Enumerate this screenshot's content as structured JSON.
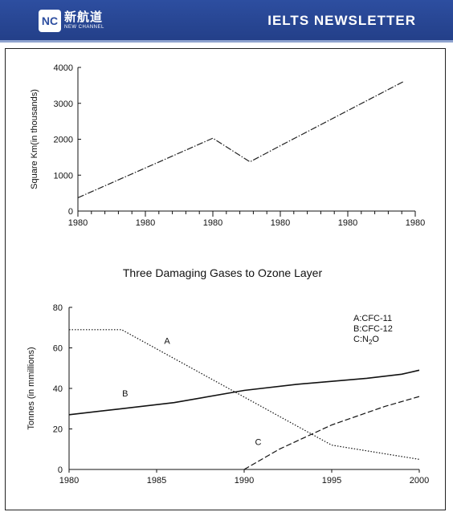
{
  "header": {
    "logo_mark": "NC",
    "logo_cn": "新航道",
    "logo_en": "NEW CHANNEL",
    "title": "IELTS  NEWSLETTER"
  },
  "chart_data": [
    {
      "type": "line",
      "title": "",
      "xlabel": "",
      "ylabel": "Square Km(in thousands)",
      "xticks": [
        "1980",
        "1980",
        "1980",
        "1980",
        "1980",
        "1980"
      ],
      "yticks": [
        "0",
        "1000",
        "2000",
        "3000",
        "4000"
      ],
      "ylim": [
        0,
        4000
      ],
      "x_index_range": [
        0,
        5
      ],
      "grid": false,
      "series": [
        {
          "style": "dash-dot",
          "points": [
            [
              0,
              370
            ],
            [
              2,
              2030
            ],
            [
              2.55,
              1370
            ],
            [
              3,
              1820
            ],
            [
              4.82,
              3600
            ]
          ]
        }
      ]
    },
    {
      "type": "line",
      "title": "Three Damaging Gases to Ozone Layer",
      "xlabel": "",
      "ylabel": "Tonnes (in mmillions)",
      "xlim": [
        1980,
        2000
      ],
      "ylim": [
        0,
        80
      ],
      "xticks": [
        "1980",
        "1985",
        "1990",
        "1995",
        "2000"
      ],
      "yticks": [
        "0",
        "20",
        "40",
        "60",
        "80"
      ],
      "grid": false,
      "legend": [
        "A:CFC-11",
        "B:CFC-12",
        "C:N2O"
      ],
      "series": [
        {
          "name": "A",
          "style": "dotted",
          "points": [
            [
              1980,
              69
            ],
            [
              1983,
              69
            ],
            [
              1995,
              12
            ],
            [
              2000,
              5
            ]
          ],
          "label_at": [
            1985.6,
            62
          ]
        },
        {
          "name": "B",
          "style": "solid",
          "points": [
            [
              1980,
              27
            ],
            [
              1983,
              30
            ],
            [
              1986,
              33
            ],
            [
              1990,
              39
            ],
            [
              1993,
              42
            ],
            [
              1997,
              45
            ],
            [
              1999,
              47
            ],
            [
              2000,
              49
            ]
          ],
          "label_at": [
            1983.2,
            36
          ]
        },
        {
          "name": "C",
          "style": "dash",
          "points": [
            [
              1990,
              0
            ],
            [
              1992,
              10
            ],
            [
              1995,
              22
            ],
            [
              1998,
              31
            ],
            [
              2000,
              36
            ]
          ],
          "label_at": [
            1990.8,
            12
          ]
        }
      ]
    }
  ]
}
